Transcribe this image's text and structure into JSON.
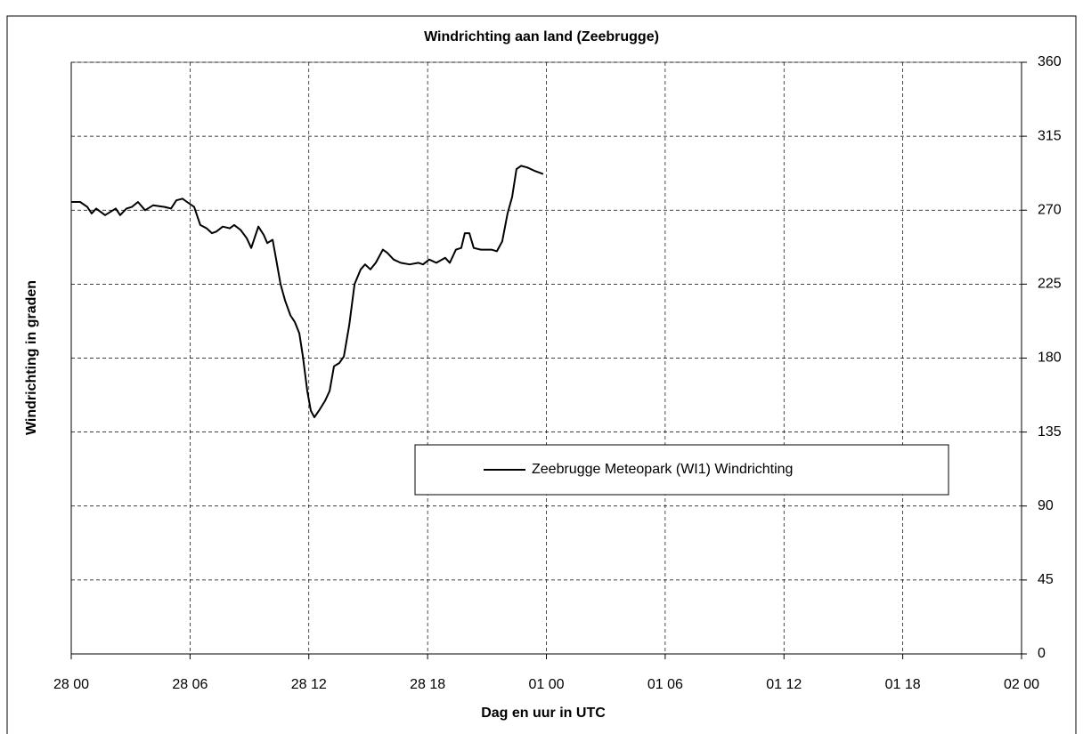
{
  "chart_data": {
    "type": "line",
    "title": "Windrichting aan land (Zeebrugge)",
    "x_label": "Dag en uur in UTC",
    "y_label": "Windrichting in graden",
    "xlim": [
      0,
      48
    ],
    "xticks": [
      {
        "value": 0,
        "label": "28 00"
      },
      {
        "value": 6,
        "label": "28 06"
      },
      {
        "value": 12,
        "label": "28 12"
      },
      {
        "value": 18,
        "label": "28 18"
      },
      {
        "value": 24,
        "label": "01 00"
      },
      {
        "value": 30,
        "label": "01 06"
      },
      {
        "value": 36,
        "label": "01 12"
      },
      {
        "value": 42,
        "label": "01 18"
      },
      {
        "value": 48,
        "label": "02 00"
      }
    ],
    "ylim": [
      0,
      360
    ],
    "yticks": [
      0,
      45,
      90,
      135,
      180,
      225,
      270,
      315,
      360
    ],
    "grid": true,
    "legend": "center",
    "x": [
      0,
      0.45,
      0.81,
      1.03,
      1.26,
      1.71,
      2.25,
      2.47,
      2.79,
      3.06,
      3.37,
      3.73,
      4.14,
      4.72,
      5.04,
      5.31,
      5.62,
      5.85,
      6.21,
      6.52,
      6.84,
      7.11,
      7.33,
      7.65,
      8.01,
      8.23,
      8.55,
      8.86,
      9.09,
      9.45,
      9.72,
      9.9,
      10.17,
      10.35,
      10.57,
      10.8,
      11.07,
      11.29,
      11.52,
      11.7,
      11.92,
      12.1,
      12.28,
      12.51,
      12.82,
      13.05,
      13.27,
      13.54,
      13.77,
      14.04,
      14.31,
      14.62,
      14.84,
      15.11,
      15.38,
      15.74,
      15.97,
      16.28,
      16.64,
      17.09,
      17.54,
      17.77,
      18.08,
      18.44,
      18.89,
      19.12,
      19.43,
      19.7,
      19.88,
      20.11,
      20.33,
      20.69,
      21.23,
      21.5,
      21.77,
      22.04,
      22.27,
      22.49,
      22.72,
      23.03,
      23.39,
      23.84
    ],
    "series": [
      {
        "name": "Zeebrugge Meteopark (WI1) Windrichting",
        "color": "#000000",
        "values": [
          275,
          275,
          272,
          268,
          271,
          267,
          271,
          267,
          271,
          272,
          275,
          270,
          273,
          272,
          271,
          276,
          277,
          275,
          272,
          261,
          259,
          256,
          257,
          260,
          259,
          261,
          258,
          253,
          247,
          260,
          255,
          250,
          252,
          240,
          225,
          215,
          206,
          202,
          195,
          181,
          160,
          148,
          144,
          148,
          154,
          160,
          175,
          177,
          181,
          200,
          225,
          234,
          237,
          234,
          238,
          246,
          244,
          240,
          238,
          237,
          238,
          237,
          240,
          238,
          241,
          238,
          246,
          247,
          256,
          256,
          247,
          246,
          246,
          245,
          251,
          268,
          278,
          295,
          297,
          296,
          294,
          292
        ]
      }
    ]
  }
}
